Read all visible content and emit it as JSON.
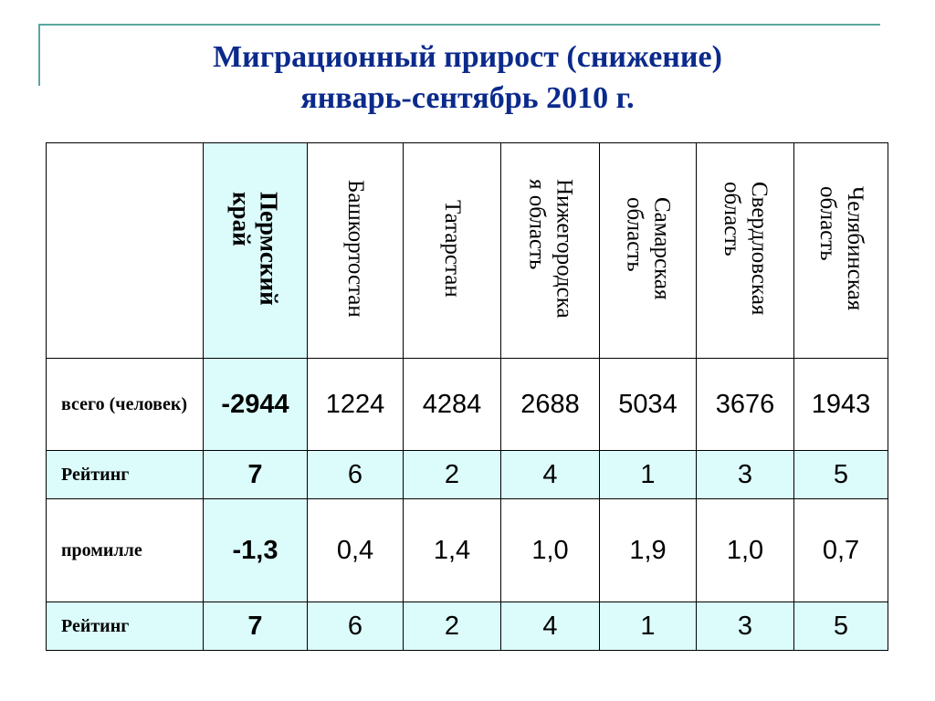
{
  "title": {
    "line1": "Миграционный прирост (снижение)",
    "line2": "январь-сентябрь 2010 г."
  },
  "table": {
    "columns": [
      "Пермский\nкрай",
      "Башкортостан",
      "Татарстан",
      "Нижегородска\nя область",
      "Самарская\nобласть",
      "Свердловская\nобласть",
      "Челябинская\nобласть"
    ],
    "rows": [
      {
        "label": "всего (человек)",
        "values": [
          "-2944",
          "1224",
          "4284",
          "2688",
          "5034",
          "3676",
          "1943"
        ]
      },
      {
        "label": "Рейтинг",
        "values": [
          "7",
          "6",
          "2",
          "4",
          "1",
          "3",
          "5"
        ]
      },
      {
        "label": "промилле",
        "values": [
          "-1,3",
          "0,4",
          "1,4",
          "1,0",
          "1,9",
          "1,0",
          "0,7"
        ]
      },
      {
        "label": "Рейтинг",
        "values": [
          "7",
          "6",
          "2",
          "4",
          "1",
          "3",
          "5"
        ]
      }
    ]
  },
  "colors": {
    "title": "#0b2a8c",
    "highlight": "#dcfcfc",
    "accent_line": "#5aa6a0"
  }
}
